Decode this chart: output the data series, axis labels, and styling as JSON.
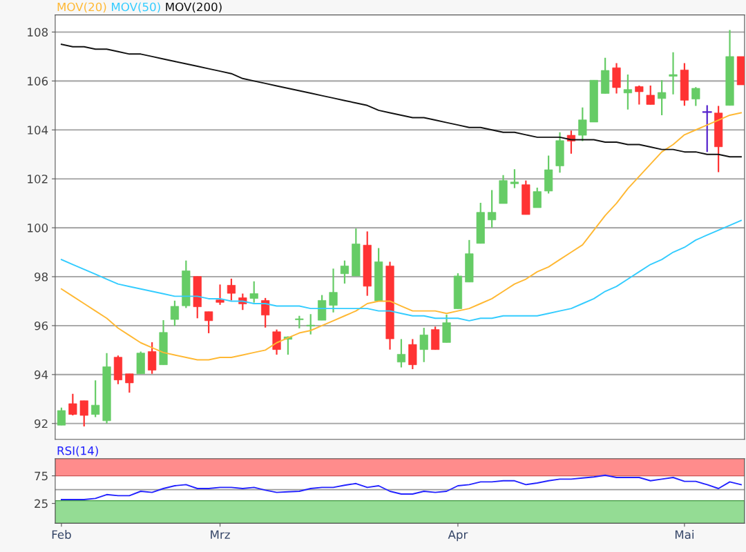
{
  "chart_data": [
    {
      "type": "candlestick",
      "categories": [
        null,
        null,
        null,
        null,
        null,
        null,
        null,
        null,
        null,
        null,
        null,
        null,
        null,
        null,
        null,
        null,
        null,
        null,
        null,
        null,
        null,
        null,
        null,
        null,
        null,
        null,
        null,
        null,
        null,
        null,
        null,
        null,
        null,
        null,
        null,
        null,
        null,
        null,
        null,
        null,
        null,
        null,
        null,
        null,
        null,
        null,
        null,
        null,
        null,
        null,
        null,
        null,
        null,
        null,
        null,
        null,
        null,
        null,
        null,
        null,
        null
      ],
      "ohlc": [
        [
          91.93,
          92.65,
          91.93,
          92.53
        ],
        [
          92.81,
          93.21,
          92.33,
          92.37
        ],
        [
          92.93,
          92.93,
          91.88,
          92.33
        ],
        [
          92.37,
          93.76,
          92.26,
          92.75
        ],
        [
          92.11,
          94.88,
          92.0,
          94.32
        ],
        [
          94.71,
          94.78,
          93.61,
          93.78
        ],
        [
          94.03,
          94.03,
          93.26,
          93.66
        ],
        [
          94.03,
          94.94,
          94.03,
          94.88
        ],
        [
          94.94,
          95.32,
          94.03,
          94.18
        ],
        [
          94.4,
          96.22,
          94.4,
          95.72
        ],
        [
          96.25,
          97.02,
          95.99,
          96.79
        ],
        [
          96.81,
          98.66,
          96.72,
          98.24
        ],
        [
          98.01,
          98.01,
          96.3,
          96.77
        ],
        [
          96.57,
          96.57,
          95.69,
          96.2
        ],
        [
          97.05,
          97.68,
          96.85,
          96.95
        ],
        [
          97.65,
          97.92,
          97.03,
          97.32
        ],
        [
          97.14,
          97.31,
          96.64,
          96.89
        ],
        [
          97.11,
          97.81,
          96.94,
          97.31
        ],
        [
          97.03,
          97.13,
          95.92,
          96.43
        ],
        [
          95.75,
          95.84,
          94.81,
          95.02
        ],
        [
          95.44,
          95.56,
          94.81,
          95.54
        ],
        [
          96.24,
          96.4,
          95.89,
          96.28
        ],
        [
          95.98,
          96.47,
          95.64,
          96.02
        ],
        [
          96.22,
          97.25,
          96.22,
          97.03
        ],
        [
          96.83,
          98.33,
          96.54,
          97.36
        ],
        [
          98.12,
          98.66,
          97.72,
          98.44
        ],
        [
          98.03,
          99.97,
          98.03,
          99.34
        ],
        [
          99.29,
          99.85,
          97.22,
          97.61
        ],
        [
          97.01,
          99.17,
          97.01,
          98.61
        ],
        [
          98.44,
          98.61,
          95.02,
          95.46
        ],
        [
          94.51,
          95.45,
          94.29,
          94.83
        ],
        [
          95.23,
          95.45,
          94.22,
          94.4
        ],
        [
          95.02,
          95.91,
          94.51,
          95.62
        ],
        [
          95.84,
          95.96,
          95.02,
          95.02
        ],
        [
          95.31,
          96.45,
          95.31,
          96.12
        ],
        [
          96.69,
          98.14,
          96.69,
          98.03
        ],
        [
          97.78,
          99.5,
          97.78,
          98.94
        ],
        [
          99.36,
          101.02,
          99.36,
          100.63
        ],
        [
          100.32,
          101.54,
          100.0,
          100.63
        ],
        [
          100.99,
          102.15,
          100.99,
          101.93
        ],
        [
          101.8,
          102.39,
          101.62,
          101.87
        ],
        [
          101.76,
          101.93,
          100.54,
          100.54
        ],
        [
          100.82,
          101.64,
          100.82,
          101.48
        ],
        [
          101.5,
          102.95,
          101.4,
          102.37
        ],
        [
          102.53,
          103.9,
          102.25,
          103.56
        ],
        [
          103.78,
          103.97,
          103.03,
          103.54
        ],
        [
          103.78,
          104.92,
          103.54,
          104.41
        ],
        [
          104.32,
          106.03,
          104.32,
          106.03
        ],
        [
          105.49,
          106.95,
          105.49,
          106.43
        ],
        [
          106.54,
          106.73,
          105.49,
          105.73
        ],
        [
          105.51,
          106.26,
          104.83,
          105.65
        ],
        [
          105.77,
          105.81,
          105.04,
          105.56
        ],
        [
          105.42,
          105.81,
          105.04,
          105.04
        ],
        [
          105.28,
          106.03,
          104.6,
          105.53
        ],
        [
          106.19,
          107.17,
          105.45,
          106.26
        ],
        [
          106.45,
          106.73,
          104.99,
          105.21
        ],
        [
          105.26,
          105.75,
          104.98,
          105.7
        ],
        [
          104.73,
          105.01,
          103.1,
          104.73
        ],
        [
          104.69,
          104.98,
          102.27,
          103.31
        ],
        [
          105.0,
          108.08,
          105.0,
          107.0
        ],
        [
          107.0,
          107.0,
          105.84,
          105.84
        ]
      ],
      "colors": [
        "#66cc66",
        "#ff3333",
        "#ff3333",
        "#66cc66",
        "#66cc66",
        "#ff3333",
        "#ff3333",
        "#66cc66",
        "#ff3333",
        "#66cc66",
        "#66cc66",
        "#66cc66",
        "#ff3333",
        "#ff3333",
        "#ff3333",
        "#ff3333",
        "#ff3333",
        "#66cc66",
        "#ff3333",
        "#ff3333",
        "#66cc66",
        "#66cc66",
        "#66cc66",
        "#66cc66",
        "#66cc66",
        "#66cc66",
        "#66cc66",
        "#ff3333",
        "#66cc66",
        "#ff3333",
        "#66cc66",
        "#ff3333",
        "#66cc66",
        "#ff3333",
        "#66cc66",
        "#66cc66",
        "#66cc66",
        "#66cc66",
        "#66cc66",
        "#66cc66",
        "#66cc66",
        "#ff3333",
        "#66cc66",
        "#66cc66",
        "#66cc66",
        "#ff3333",
        "#66cc66",
        "#66cc66",
        "#66cc66",
        "#ff3333",
        "#66cc66",
        "#ff3333",
        "#ff3333",
        "#66cc66",
        "#66cc66",
        "#ff3333",
        "#66cc66",
        "#5522cc",
        "#ff3333",
        "#66cc66",
        "#ff3333"
      ],
      "series": [
        {
          "type": "line",
          "name": "MOV(20)",
          "color": "#ffb833",
          "values": [
            97.5,
            97.2,
            96.9,
            96.6,
            96.3,
            95.9,
            95.6,
            95.3,
            95.1,
            94.9,
            94.8,
            94.7,
            94.6,
            94.6,
            94.7,
            94.7,
            94.8,
            94.9,
            95.0,
            95.3,
            95.5,
            95.7,
            95.8,
            96.0,
            96.2,
            96.4,
            96.6,
            96.9,
            97.0,
            97.0,
            96.8,
            96.6,
            96.6,
            96.6,
            96.5,
            96.6,
            96.7,
            96.9,
            97.1,
            97.4,
            97.7,
            97.9,
            98.2,
            98.4,
            98.7,
            99.0,
            99.3,
            99.9,
            100.5,
            101.0,
            101.6,
            102.1,
            102.6,
            103.1,
            103.4,
            103.8,
            104.0,
            104.2,
            104.4,
            104.6,
            104.7
          ]
        },
        {
          "type": "line",
          "name": "MOV(50)",
          "color": "#33ccff",
          "values": [
            98.7,
            98.5,
            98.3,
            98.1,
            97.9,
            97.7,
            97.6,
            97.5,
            97.4,
            97.3,
            97.2,
            97.2,
            97.2,
            97.1,
            97.1,
            97.0,
            97.0,
            96.9,
            96.9,
            96.8,
            96.8,
            96.8,
            96.7,
            96.7,
            96.7,
            96.7,
            96.7,
            96.7,
            96.6,
            96.6,
            96.5,
            96.4,
            96.4,
            96.3,
            96.3,
            96.3,
            96.2,
            96.3,
            96.3,
            96.4,
            96.4,
            96.4,
            96.4,
            96.5,
            96.6,
            96.7,
            96.9,
            97.1,
            97.4,
            97.6,
            97.9,
            98.2,
            98.5,
            98.7,
            99.0,
            99.2,
            99.5,
            99.7,
            99.9,
            100.1,
            100.3
          ]
        },
        {
          "type": "line",
          "name": "MOV(200)",
          "color": "#111111",
          "values": [
            107.5,
            107.4,
            107.4,
            107.3,
            107.3,
            107.2,
            107.1,
            107.1,
            107.0,
            106.9,
            106.8,
            106.7,
            106.6,
            106.5,
            106.4,
            106.3,
            106.1,
            106.0,
            105.9,
            105.8,
            105.7,
            105.6,
            105.5,
            105.4,
            105.3,
            105.2,
            105.1,
            105.0,
            104.8,
            104.7,
            104.6,
            104.5,
            104.5,
            104.4,
            104.3,
            104.2,
            104.1,
            104.1,
            104.0,
            103.9,
            103.9,
            103.8,
            103.7,
            103.7,
            103.7,
            103.6,
            103.6,
            103.6,
            103.5,
            103.5,
            103.4,
            103.4,
            103.3,
            103.2,
            103.2,
            103.1,
            103.1,
            103.0,
            103.0,
            102.9,
            102.9
          ]
        }
      ],
      "ylim": [
        91.35,
        108.7
      ],
      "yticks": [
        92,
        94,
        96,
        98,
        100,
        102,
        104,
        106,
        108
      ],
      "grid": "y",
      "legend": "top left",
      "tick_labels": "y"
    },
    {
      "type": "line",
      "categories": [
        "Feb",
        null,
        null,
        null,
        null,
        null,
        null,
        null,
        null,
        null,
        null,
        null,
        null,
        null,
        "Mrz",
        null,
        null,
        null,
        null,
        null,
        null,
        null,
        null,
        null,
        null,
        null,
        null,
        null,
        null,
        null,
        null,
        null,
        null,
        null,
        null,
        "Apr",
        null,
        null,
        null,
        null,
        null,
        null,
        null,
        null,
        null,
        null,
        null,
        null,
        null,
        null,
        null,
        null,
        null,
        null,
        null,
        "Mai",
        null,
        null,
        null,
        null,
        null
      ],
      "series": [
        {
          "name": "RSI(14)",
          "color": "#2222ff",
          "values": [
            32,
            32,
            32,
            34,
            41,
            39,
            39,
            47,
            45,
            52,
            57,
            59,
            52,
            52,
            54,
            54,
            52,
            54,
            49,
            45,
            46,
            47,
            52,
            54,
            54,
            58,
            61,
            54,
            57,
            47,
            42,
            42,
            47,
            45,
            47,
            57,
            59,
            64,
            64,
            66,
            66,
            59,
            62,
            66,
            69,
            69,
            71,
            73,
            76,
            72,
            72,
            72,
            66,
            69,
            72,
            65,
            65,
            59,
            52,
            64,
            59
          ]
        }
      ],
      "ylim": [
        -11,
        106
      ],
      "yticks": [
        25,
        75
      ],
      "bands": [
        {
          "axis": "y",
          "from": 75,
          "to": 106,
          "color": "#ff8080"
        },
        {
          "axis": "y",
          "from": -11,
          "to": 30,
          "color": "#88d888"
        }
      ],
      "ref_lines": [
        {
          "axis": "y",
          "value": 50,
          "color": "#999999"
        }
      ],
      "legend": "top left"
    }
  ]
}
